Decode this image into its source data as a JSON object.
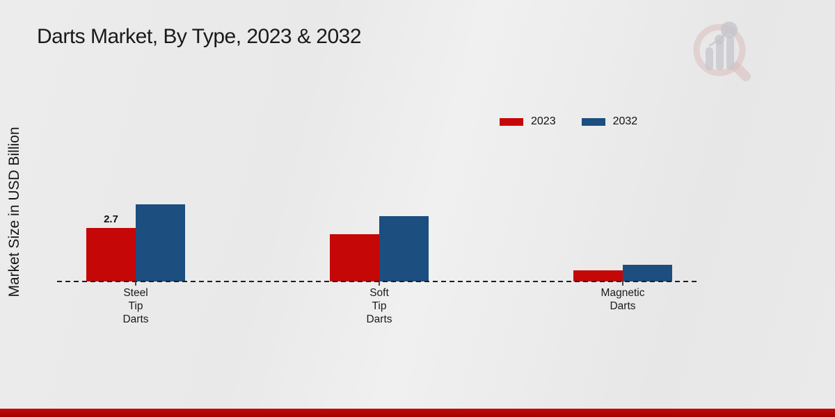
{
  "title": "Darts Market, By Type, 2023 & 2032",
  "ylabel": "Market Size in USD Billion",
  "legend": {
    "items": [
      {
        "label": "2023",
        "color": "#c50707"
      },
      {
        "label": "2032",
        "color": "#1c4e80"
      }
    ]
  },
  "watermark": "market-research-future-logo",
  "colors": {
    "accent_red": "#c50707",
    "accent_blue": "#1c4e80",
    "footer_bar": "#b50606",
    "background": "#eaeaea"
  },
  "chart_data": {
    "type": "bar",
    "title": "Darts Market, By Type, 2023 & 2032",
    "xlabel": "",
    "ylabel": "Market Size in USD Billion",
    "unit": "USD Billion",
    "categories": [
      "Steel Tip Darts",
      "Soft Tip Darts",
      "Magnetic Darts"
    ],
    "category_label_lines": [
      [
        "Steel",
        "Tip",
        "Darts"
      ],
      [
        "Soft",
        "Tip",
        "Darts"
      ],
      [
        "Magnetic",
        "Darts"
      ]
    ],
    "series": [
      {
        "name": "2023",
        "color": "#c50707",
        "values": [
          2.7,
          2.4,
          0.55
        ],
        "data_labels": [
          "2.7",
          "",
          ""
        ]
      },
      {
        "name": "2032",
        "color": "#1c4e80",
        "values": [
          3.9,
          3.3,
          0.85
        ],
        "data_labels": [
          "",
          "",
          ""
        ]
      }
    ],
    "ylim": [
      0,
      4.5
    ],
    "grid": false,
    "axis_line_style": "dashed-baseline",
    "legend_position": "top-right"
  }
}
